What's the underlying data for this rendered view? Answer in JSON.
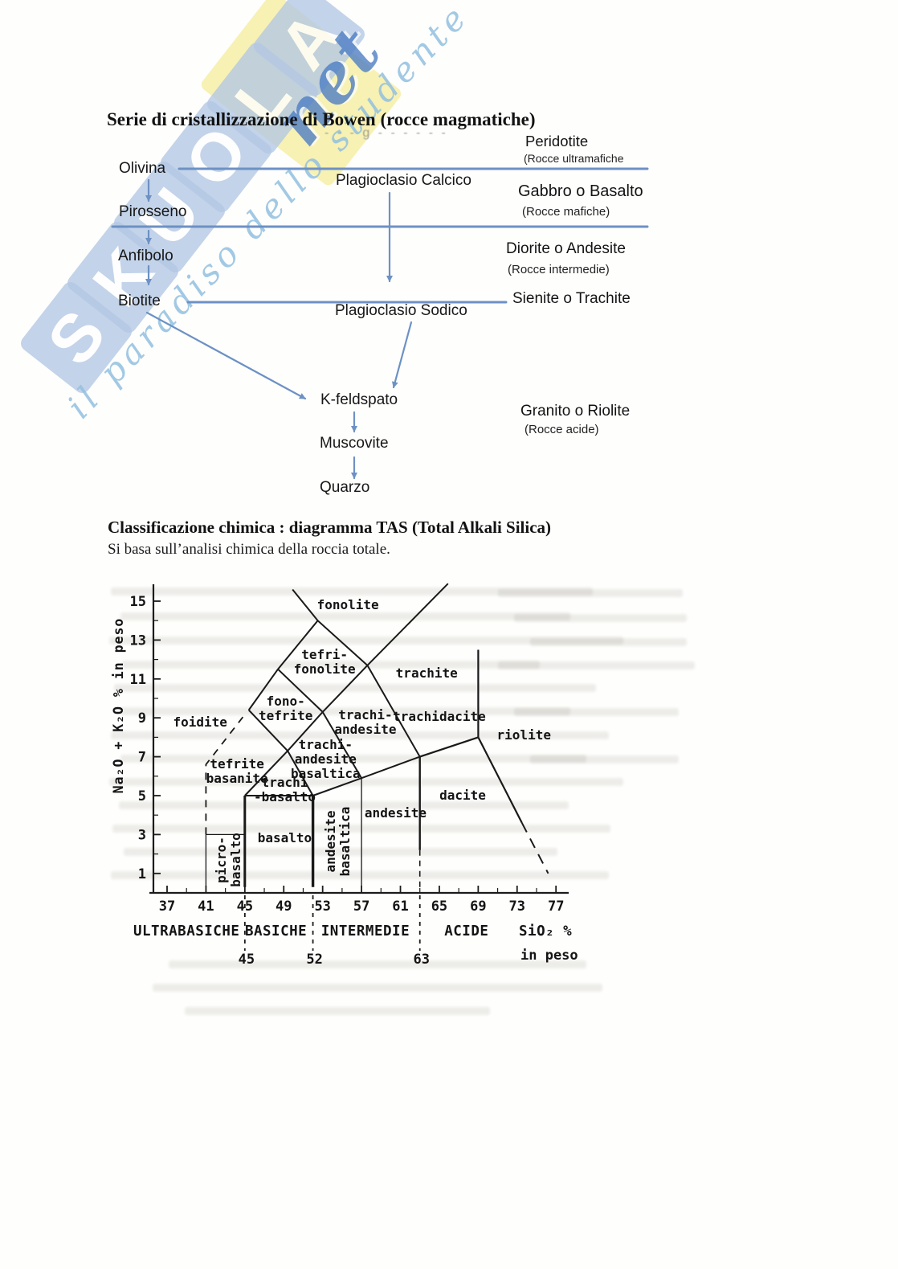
{
  "page": {
    "background": "#fefefd"
  },
  "watermark": {
    "letters": [
      "S",
      "K",
      "U",
      "O",
      "L",
      "A"
    ],
    "suffix": "net",
    "tagline": "il paradiso dello studente",
    "tile_color": "#b3c8e4",
    "band_color": "#f6efa6",
    "script_color": "#4f7fc4",
    "tagline_color": "#93c0e0"
  },
  "bowen": {
    "title": "Serie di cristallizzazione di Bowen (rocce magmatiche)",
    "faded_remnant": "- - - g - - - - - -",
    "discontinuous_series": [
      "Olivina",
      "Pirosseno",
      "Anfibolo",
      "Biotite"
    ],
    "continuous_series": {
      "top": "Plagioclasio Calcico",
      "bottom": "Plagioclasio Sodico"
    },
    "late_series": [
      "K-feldspato",
      "Muscovite",
      "Quarzo"
    ],
    "rock_groups": [
      {
        "name": "Peridotite",
        "note": "(Rocce ultramafiche"
      },
      {
        "name": "Gabbro o Basalto",
        "note": "(Rocce mafiche)"
      },
      {
        "name": "Diorite o Andesite",
        "note": "(Rocce intermedie)"
      },
      {
        "name": "Sienite o Trachite",
        "note": ""
      },
      {
        "name": "Granito o Riolite",
        "note": "(Rocce acide)"
      }
    ],
    "line_color": "#6d91c4"
  },
  "tas": {
    "title": "Classificazione chimica : diagramma TAS (Total Alkali Silica)",
    "subtitle": "Si basa sull’analisi chimica della roccia totale."
  },
  "chart_data": {
    "type": "line",
    "title": "diagramma TAS (Total Alkali Silica)",
    "xlabel_lines": [
      "SiO₂ %",
      "in peso"
    ],
    "ylabel": "Na₂O + K₂O    % in peso",
    "xlim": [
      35.5,
      78.5
    ],
    "ylim": [
      0,
      16
    ],
    "x_ticks_labeled": [
      37,
      41,
      45,
      49,
      53,
      57,
      61,
      65,
      69,
      73,
      77
    ],
    "x_ticks_minor": [
      39,
      43,
      47,
      51,
      55,
      59,
      63,
      67,
      71,
      75
    ],
    "y_ticks_labeled": [
      1,
      3,
      5,
      7,
      9,
      11,
      13,
      15
    ],
    "y_ticks_minor": [
      2,
      4,
      6,
      8,
      10,
      12,
      14
    ],
    "grid": false,
    "categories": [
      {
        "label": "ULTRABASICHE",
        "center": 39.0
      },
      {
        "label": "BASICHE",
        "center": 48.2
      },
      {
        "label": "INTERMEDIE",
        "center": 57.4
      },
      {
        "label": "ACIDE",
        "center": 67.8
      }
    ],
    "category_boundaries": [
      45,
      52,
      63
    ],
    "fields": [
      {
        "name": "foidite",
        "lines": [
          "foidite"
        ],
        "x": 40.4,
        "y": 8.75,
        "rot": 0
      },
      {
        "name": "fonolite",
        "lines": [
          "fonolite"
        ],
        "x": 55.6,
        "y": 14.8,
        "rot": 0
      },
      {
        "name": "tefri-fonolite",
        "lines": [
          "tefri-",
          "fonolite"
        ],
        "x": 53.2,
        "y": 11.85,
        "rot": 0
      },
      {
        "name": "fono-tefrite",
        "lines": [
          "fono-",
          "tefrite"
        ],
        "x": 49.2,
        "y": 9.45,
        "rot": 0
      },
      {
        "name": "trachite",
        "lines": [
          "trachite"
        ],
        "x": 63.7,
        "y": 11.3,
        "rot": 0
      },
      {
        "name": "trachidacite",
        "lines": [
          "trachidacite"
        ],
        "x": 65.0,
        "y": 9.05,
        "rot": 0
      },
      {
        "name": "riolite",
        "lines": [
          "riolite"
        ],
        "x": 73.7,
        "y": 8.1,
        "rot": 0
      },
      {
        "name": "trachi-andesite",
        "lines": [
          "trachi-",
          "andesite"
        ],
        "x": 57.4,
        "y": 8.75,
        "rot": 0
      },
      {
        "name": "trachi-andesite-basaltica",
        "lines": [
          "trachi-",
          "andesite",
          "basaltica"
        ],
        "x": 53.3,
        "y": 6.85,
        "rot": 0
      },
      {
        "name": "trachi-basalto",
        "lines": [
          "trachi",
          "-basalto"
        ],
        "x": 49.1,
        "y": 5.3,
        "rot": 0
      },
      {
        "name": "tefrite-basanite",
        "lines": [
          "tefrite",
          "basanite"
        ],
        "x": 44.2,
        "y": 6.25,
        "rot": 0
      },
      {
        "name": "dacite",
        "lines": [
          "dacite"
        ],
        "x": 67.4,
        "y": 5.0,
        "rot": 0
      },
      {
        "name": "andesite",
        "lines": [
          "andesite"
        ],
        "x": 60.5,
        "y": 4.1,
        "rot": 0
      },
      {
        "name": "basalto",
        "lines": [
          "basalto"
        ],
        "x": 49.1,
        "y": 2.8,
        "rot": 0
      },
      {
        "name": "andesite-basaltica",
        "lines": [
          "andesite",
          "basaltica"
        ],
        "x": 54.6,
        "y": 2.65,
        "rot": -90
      },
      {
        "name": "picro-basalto",
        "lines": [
          "picro-",
          "basalto"
        ],
        "x": 43.4,
        "y": 1.7,
        "rot": -90
      }
    ],
    "boundaries": [
      {
        "points": [
          [
            41,
            0.3
          ],
          [
            41,
            3
          ]
        ],
        "width": 1.3
      },
      {
        "points": [
          [
            41,
            3
          ],
          [
            45,
            3
          ]
        ],
        "width": 1.3
      },
      {
        "points": [
          [
            45,
            0.3
          ],
          [
            45,
            5
          ]
        ],
        "width": 3
      },
      {
        "points": [
          [
            52,
            0.3
          ],
          [
            52,
            5
          ]
        ],
        "width": 3.4
      },
      {
        "points": [
          [
            57,
            0.3
          ],
          [
            57,
            5.9
          ]
        ],
        "width": 1.3
      },
      {
        "points": [
          [
            63,
            2.2
          ],
          [
            63,
            7
          ]
        ],
        "width": 2.4
      },
      {
        "points": [
          [
            63,
            2.2
          ],
          [
            63,
            0.2
          ]
        ],
        "width": 1.6,
        "dash": "7 6"
      },
      {
        "points": [
          [
            45,
            5
          ],
          [
            52,
            5
          ]
        ],
        "width": 2
      },
      {
        "points": [
          [
            45,
            5
          ],
          [
            49.4,
            7.3
          ],
          [
            53,
            9.3
          ],
          [
            57.6,
            11.7
          ]
        ],
        "width": 2
      },
      {
        "points": [
          [
            45.4,
            9.4
          ],
          [
            48.4,
            11.5
          ],
          [
            52.5,
            14
          ]
        ],
        "width": 2
      },
      {
        "points": [
          [
            49.9,
            15.6
          ],
          [
            52.5,
            14
          ],
          [
            57.6,
            11.7
          ]
        ],
        "width": 2
      },
      {
        "points": [
          [
            45.4,
            9.4
          ],
          [
            49.4,
            7.3
          ]
        ],
        "width": 2
      },
      {
        "points": [
          [
            48.4,
            11.5
          ],
          [
            53,
            9.3
          ]
        ],
        "width": 2
      },
      {
        "points": [
          [
            49.4,
            7.3
          ],
          [
            52,
            5
          ]
        ],
        "width": 2
      },
      {
        "points": [
          [
            53,
            9.3
          ],
          [
            57,
            5.9
          ]
        ],
        "width": 2
      },
      {
        "points": [
          [
            57.6,
            11.7
          ],
          [
            63,
            7
          ]
        ],
        "width": 2
      },
      {
        "points": [
          [
            52,
            5
          ],
          [
            57,
            5.9
          ]
        ],
        "width": 2
      },
      {
        "points": [
          [
            57,
            5.9
          ],
          [
            63,
            7
          ]
        ],
        "width": 2
      },
      {
        "points": [
          [
            63,
            7
          ],
          [
            69,
            8
          ]
        ],
        "width": 2.2
      },
      {
        "points": [
          [
            69,
            8
          ],
          [
            69,
            12.5
          ]
        ],
        "width": 2.2
      },
      {
        "points": [
          [
            57.6,
            11.7
          ],
          [
            65.9,
            15.9
          ]
        ],
        "width": 2
      },
      {
        "points": [
          [
            69,
            8
          ],
          [
            73.5,
            3.6
          ]
        ],
        "width": 2.2
      },
      {
        "points": [
          [
            73.5,
            3.6
          ],
          [
            76.2,
            1.0
          ]
        ],
        "width": 2,
        "dash": "13 9"
      },
      {
        "points": [
          [
            41,
            3
          ],
          [
            41,
            6.6
          ],
          [
            45.2,
            9.3
          ]
        ],
        "width": 1.8,
        "dash": "9 8"
      }
    ]
  }
}
